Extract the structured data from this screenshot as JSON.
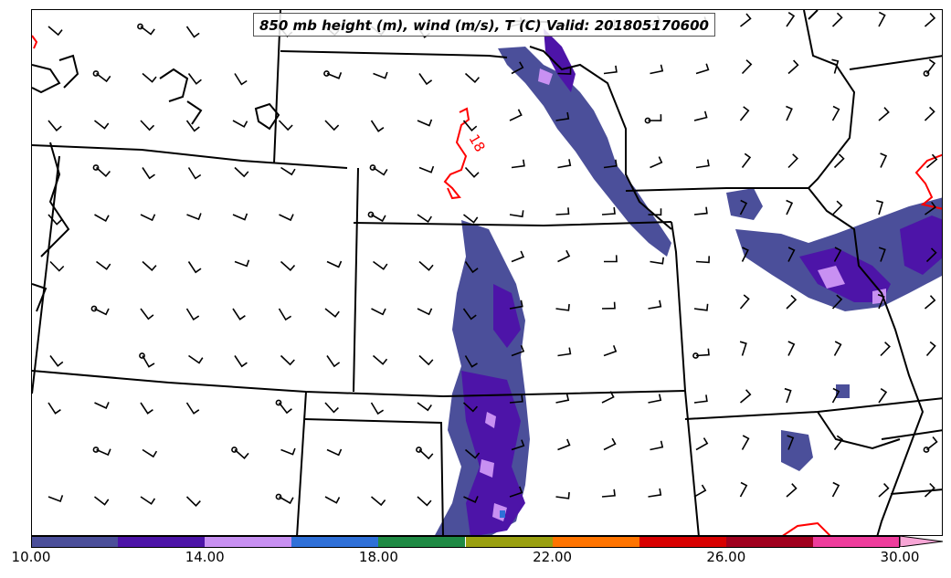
{
  "title": "850 mb height (m), wind (m/s), T (C) Valid: 201805170600",
  "contour_label": "18",
  "colorbar": {
    "levels": [
      10,
      12,
      14,
      16,
      18,
      20,
      22,
      24,
      26,
      28,
      30
    ],
    "colors": [
      "#4b4f9a",
      "#4d14a8",
      "#c890f2",
      "#2f70d8",
      "#1f8a44",
      "#9aa010",
      "#ff7400",
      "#d80000",
      "#a0001e",
      "#ee3c9c"
    ],
    "extend_color": "#f8a6d6",
    "tick_labels": [
      "10.00",
      "14.00",
      "18.00",
      "22.00",
      "26.00",
      "30.00"
    ]
  }
}
